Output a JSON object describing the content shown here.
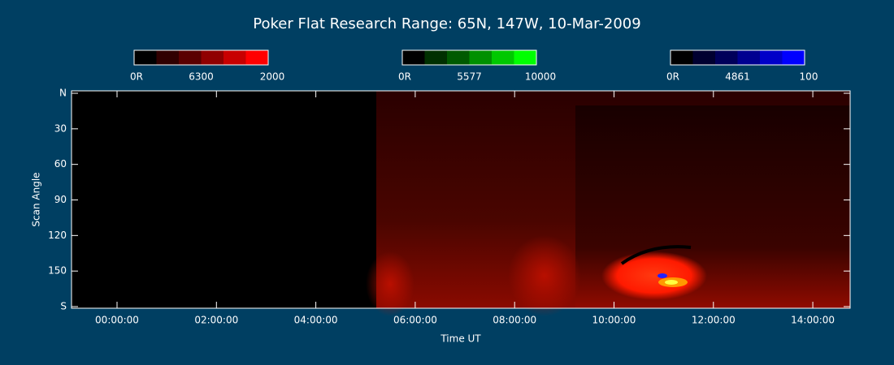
{
  "title": "Poker Flat Research Range: 65N, 147W, 10-Mar-2009",
  "colorbars": [
    {
      "min_label": "0R",
      "wavelength": "6300",
      "max_label": "2000"
    },
    {
      "min_label": "0R",
      "wavelength": "5577",
      "max_label": "10000"
    },
    {
      "min_label": "0R",
      "wavelength": "4861",
      "max_label": "100"
    }
  ],
  "y_axis": {
    "label": "Scan Angle",
    "tick_labels": [
      "N",
      "30",
      "60",
      "90",
      "120",
      "150",
      "S"
    ]
  },
  "x_axis": {
    "label": "Time UT",
    "tick_labels": [
      "00:00:00",
      "02:00:00",
      "04:00:00",
      "06:00:00",
      "08:00:00",
      "10:00:00",
      "12:00:00",
      "14:00:00"
    ]
  }
}
